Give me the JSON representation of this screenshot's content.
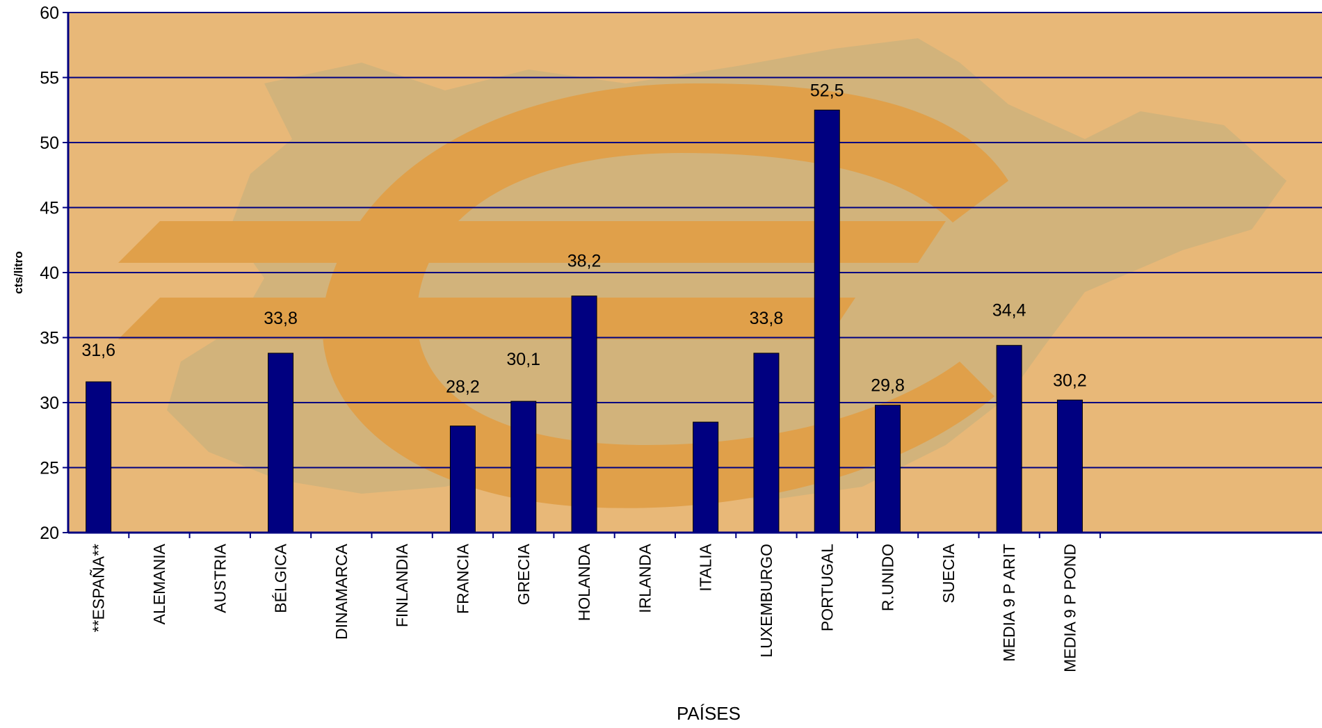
{
  "chart_data": {
    "type": "bar",
    "title": "",
    "xlabel": "PAÍSES",
    "ylabel": "cts/litro",
    "ylim": [
      20,
      60
    ],
    "yticks": [
      20,
      25,
      30,
      35,
      40,
      45,
      50,
      55,
      60
    ],
    "grid": true,
    "legend": "none",
    "colors": {
      "bar": "#000080",
      "gridline": "#000080",
      "axis": "#000080",
      "plot_background": "#e8b878",
      "euro_symbol": "#e0a04a",
      "euro_shadow": "#c98a3c",
      "map_overlay": "#cbb27c"
    },
    "categories": [
      "**ESPAÑA**",
      "ALEMANIA",
      "AUSTRIA",
      "BÉLGICA",
      "DINAMARCA",
      "FINLANDIA",
      "FRANCIA",
      "GRECIA",
      "HOLANDA",
      "IRLANDA",
      "ITALIA",
      "LUXEMBURGO",
      "PORTUGAL",
      "R.UNIDO",
      "SUECIA",
      "MEDIA 9 P ARIT",
      "MEDIA 9 P POND"
    ],
    "values": [
      31.6,
      null,
      null,
      33.8,
      null,
      null,
      28.2,
      30.1,
      38.2,
      null,
      28.5,
      33.8,
      52.5,
      29.8,
      null,
      34.4,
      30.2
    ],
    "data_labels": [
      "31,6",
      "",
      "",
      "33,8",
      "",
      "",
      "28,2",
      "30,1",
      "38,2",
      "",
      "",
      "33,8",
      "52,5",
      "29,8",
      "",
      "34,4",
      "30,2"
    ]
  }
}
